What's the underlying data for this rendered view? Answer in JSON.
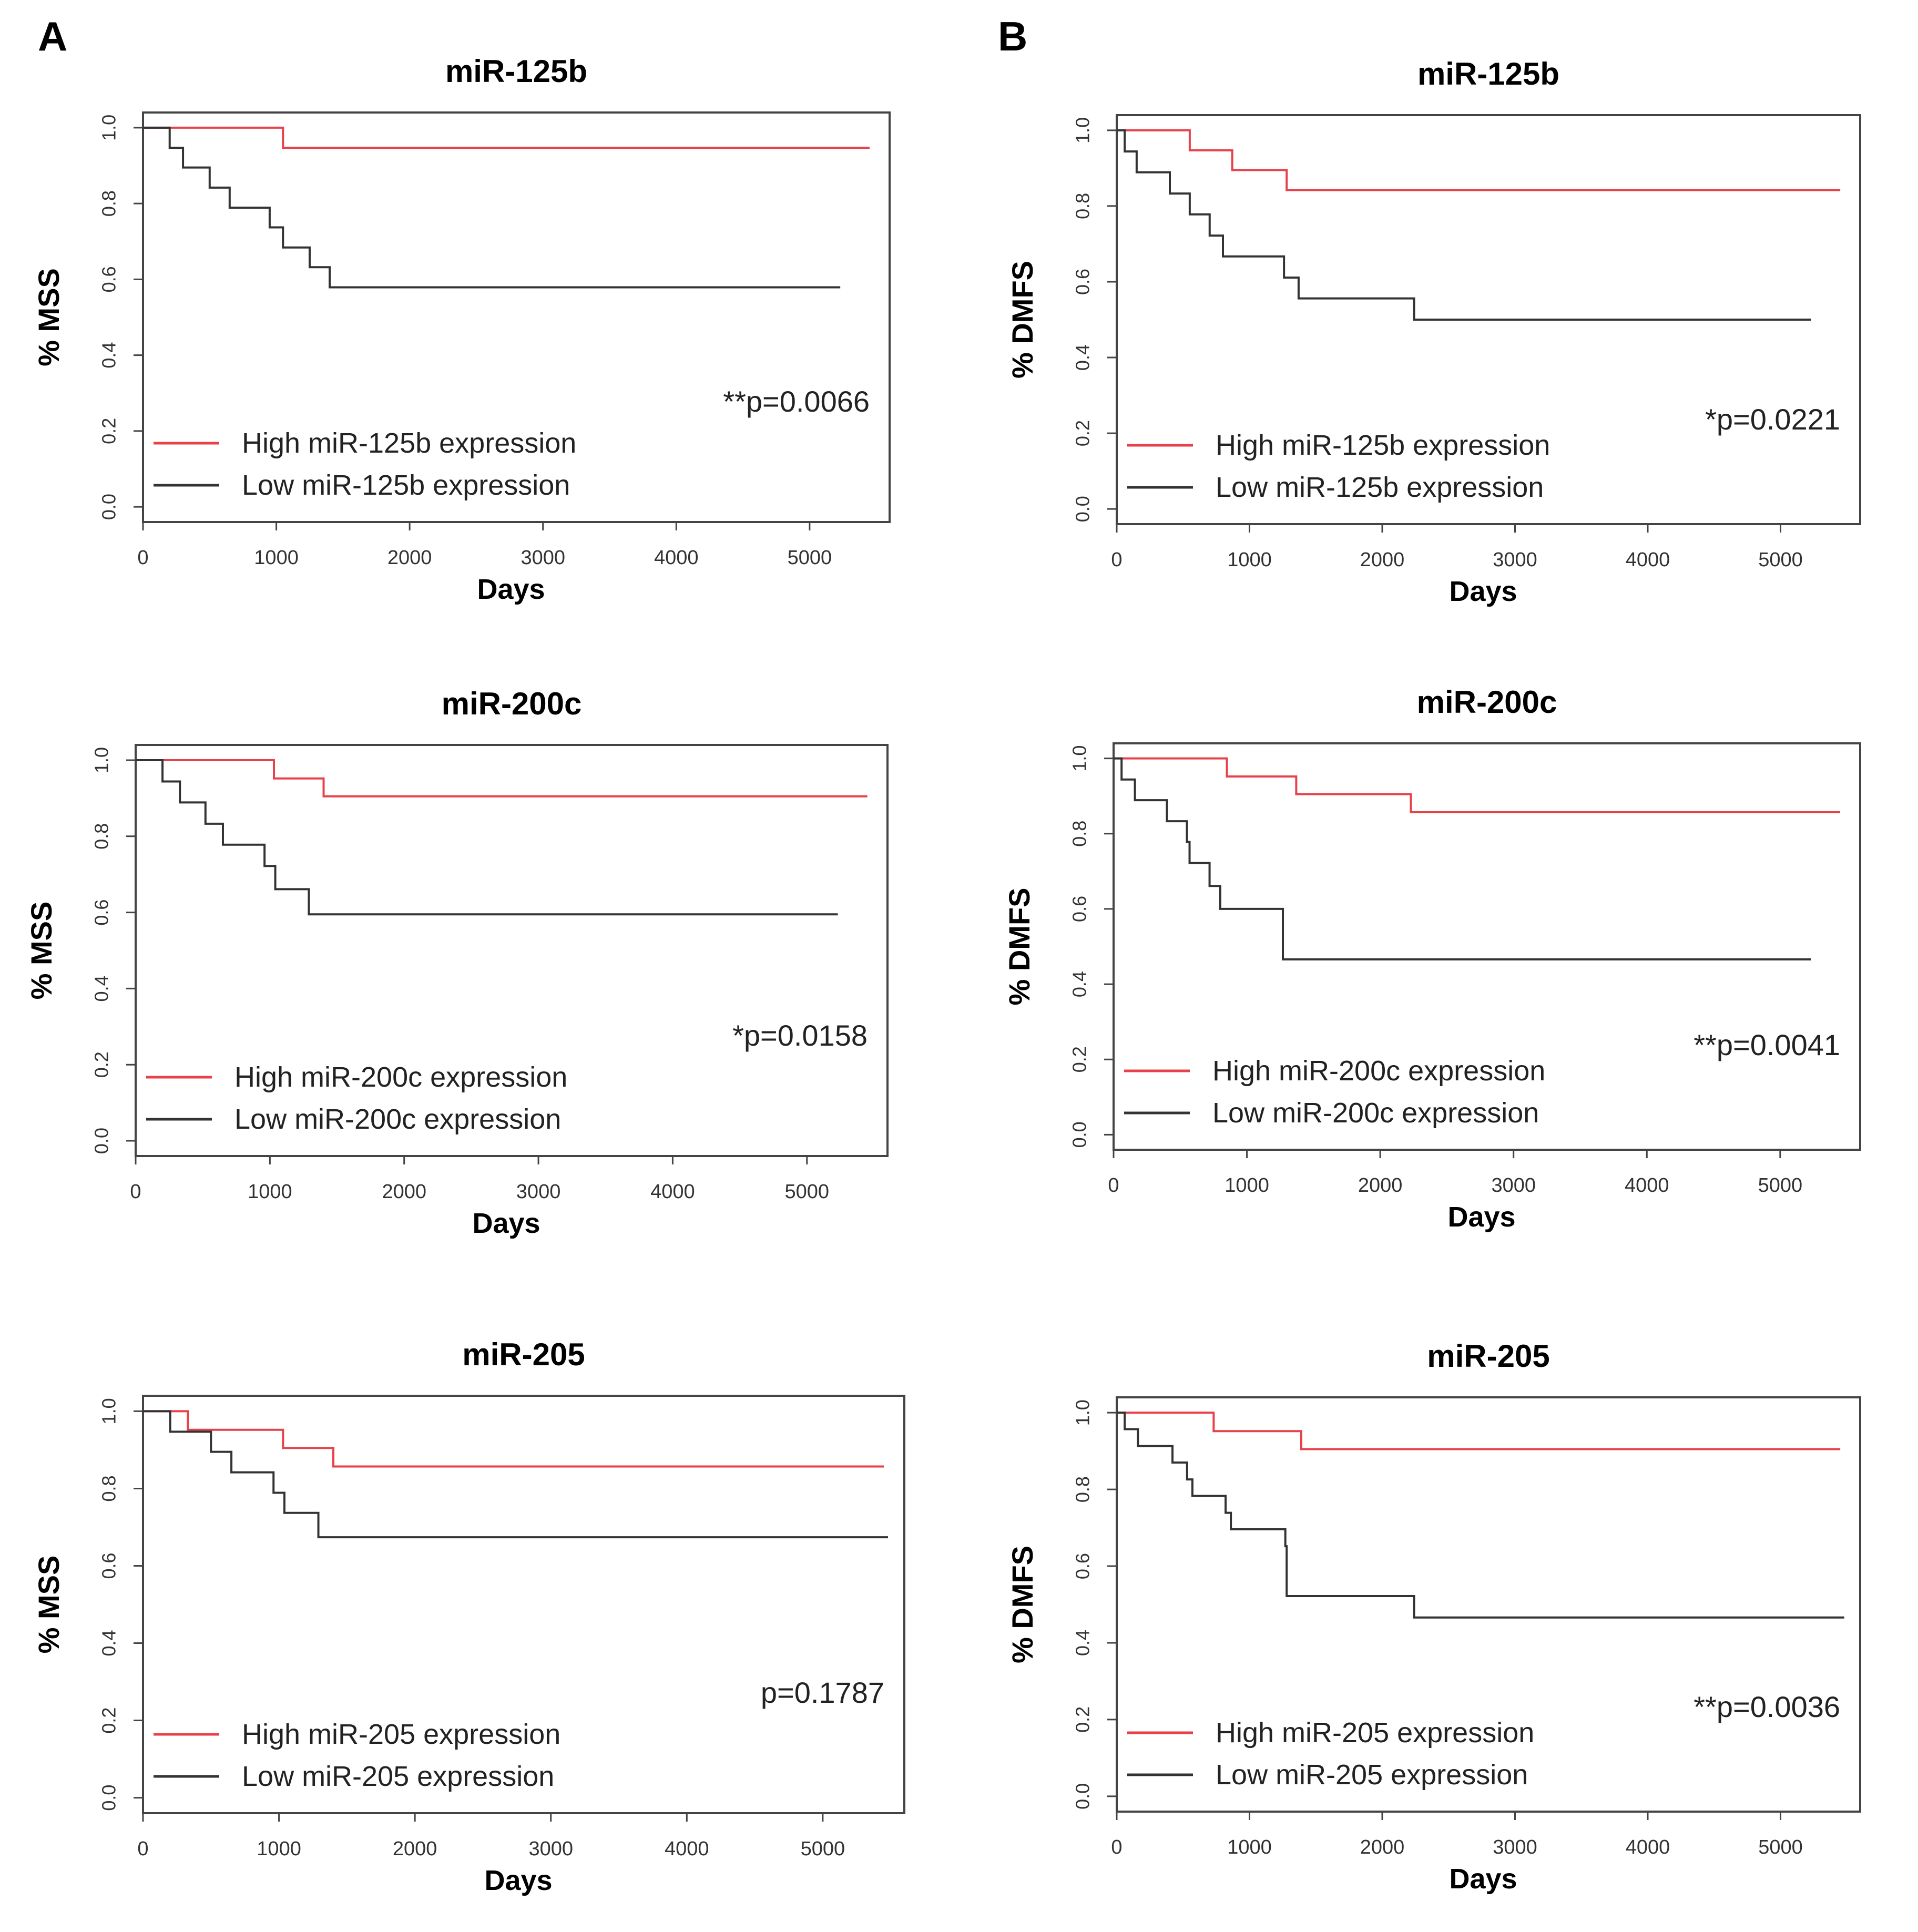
{
  "figure": {
    "panel_labels": [
      "A",
      "B"
    ]
  },
  "colors": {
    "high": "#e8414a",
    "low": "#333333",
    "frame": "#444444",
    "text": "#000000",
    "tick_text": "#333333"
  },
  "chart_data": [
    {
      "type": "line",
      "step": true,
      "panel": "A",
      "row": 0,
      "title": "miR-125b",
      "xlabel": "Days",
      "ylabel": "% MSS",
      "xlim": [
        0,
        5600
      ],
      "ylim": [
        -0.04,
        1.04
      ],
      "xticks": [
        0,
        1000,
        2000,
        3000,
        4000,
        5000
      ],
      "yticks": [
        0.0,
        0.2,
        0.4,
        0.6,
        0.8,
        1.0
      ],
      "ytick_labels": [
        "0.0",
        "0.2",
        "0.4",
        "0.6",
        "0.8",
        "1.0"
      ],
      "pvalue": "**p=0.0066",
      "legend": [
        "High miR-125b expression",
        "Low miR-125b expression"
      ],
      "series": [
        {
          "name": "High miR-125b expression",
          "color_key": "high",
          "x": [
            0,
            1050,
            5450
          ],
          "y": [
            1.0,
            0.947,
            0.947
          ]
        },
        {
          "name": "Low miR-125b expression",
          "color_key": "low",
          "x": [
            0,
            200,
            300,
            500,
            650,
            950,
            1050,
            1250,
            1400,
            5230
          ],
          "y": [
            1.0,
            0.947,
            0.895,
            0.842,
            0.789,
            0.737,
            0.684,
            0.632,
            0.579,
            0.579
          ]
        }
      ]
    },
    {
      "type": "line",
      "step": true,
      "panel": "B",
      "row": 0,
      "title": "miR-125b",
      "xlabel": "Days",
      "ylabel": "% DMFS",
      "xlim": [
        0,
        5600
      ],
      "ylim": [
        -0.04,
        1.04
      ],
      "xticks": [
        0,
        1000,
        2000,
        3000,
        4000,
        5000
      ],
      "yticks": [
        0.0,
        0.2,
        0.4,
        0.6,
        0.8,
        1.0
      ],
      "ytick_labels": [
        "0.0",
        "0.2",
        "0.4",
        "0.6",
        "0.8",
        "1.0"
      ],
      "pvalue": "*p=0.0221",
      "legend": [
        "High miR-125b expression",
        "Low miR-125b expression"
      ],
      "series": [
        {
          "name": "High miR-125b expression",
          "color_key": "high",
          "x": [
            0,
            550,
            870,
            1280,
            5450
          ],
          "y": [
            1.0,
            0.947,
            0.895,
            0.842,
            0.842
          ]
        },
        {
          "name": "Low miR-125b expression",
          "color_key": "low",
          "x": [
            0,
            60,
            150,
            400,
            550,
            700,
            800,
            1260,
            1370,
            2240,
            5230
          ],
          "y": [
            1.0,
            0.944,
            0.889,
            0.833,
            0.778,
            0.722,
            0.667,
            0.611,
            0.556,
            0.5,
            0.5
          ]
        }
      ]
    },
    {
      "type": "line",
      "step": true,
      "panel": "A",
      "row": 1,
      "title": "miR-200c",
      "xlabel": "Days",
      "ylabel": "% MSS",
      "xlim": [
        0,
        5600
      ],
      "ylim": [
        -0.04,
        1.04
      ],
      "xticks": [
        0,
        1000,
        2000,
        3000,
        4000,
        5000
      ],
      "yticks": [
        0.0,
        0.2,
        0.4,
        0.6,
        0.8,
        1.0
      ],
      "ytick_labels": [
        "0.0",
        "0.2",
        "0.4",
        "0.6",
        "0.8",
        "1.0"
      ],
      "pvalue": "*p=0.0158",
      "legend": [
        "High miR-200c expression",
        "Low miR-200c expression"
      ],
      "series": [
        {
          "name": "High miR-200c expression",
          "color_key": "high",
          "x": [
            0,
            1030,
            1400,
            5450
          ],
          "y": [
            1.0,
            0.952,
            0.905,
            0.905
          ]
        },
        {
          "name": "Low miR-200c expression",
          "color_key": "low",
          "x": [
            0,
            200,
            330,
            520,
            650,
            960,
            1040,
            1290,
            5230
          ],
          "y": [
            1.0,
            0.944,
            0.889,
            0.833,
            0.778,
            0.722,
            0.661,
            0.595,
            0.595
          ]
        }
      ]
    },
    {
      "type": "line",
      "step": true,
      "panel": "B",
      "row": 1,
      "title": "miR-200c",
      "xlabel": "Days",
      "ylabel": "% DMFS",
      "xlim": [
        0,
        5600
      ],
      "ylim": [
        -0.04,
        1.04
      ],
      "xticks": [
        0,
        1000,
        2000,
        3000,
        4000,
        5000
      ],
      "yticks": [
        0.0,
        0.2,
        0.4,
        0.6,
        0.8,
        1.0
      ],
      "ytick_labels": [
        "0.0",
        "0.2",
        "0.4",
        "0.6",
        "0.8",
        "1.0"
      ],
      "pvalue": "**p=0.0041",
      "legend": [
        "High miR-200c expression",
        "Low miR-200c expression"
      ],
      "series": [
        {
          "name": "High miR-200c expression",
          "color_key": "high",
          "x": [
            0,
            850,
            1370,
            2230,
            5450
          ],
          "y": [
            1.0,
            0.952,
            0.905,
            0.857,
            0.857
          ]
        },
        {
          "name": "Low miR-200c expression",
          "color_key": "low",
          "x": [
            0,
            60,
            160,
            400,
            550,
            570,
            720,
            800,
            1270,
            5230
          ],
          "y": [
            1.0,
            0.944,
            0.889,
            0.833,
            0.778,
            0.722,
            0.661,
            0.6,
            0.466,
            0.466
          ]
        }
      ]
    },
    {
      "type": "line",
      "step": true,
      "panel": "A",
      "row": 2,
      "title": "miR-205",
      "xlabel": "Days",
      "ylabel": "% MSS",
      "xlim": [
        0,
        5600
      ],
      "ylim": [
        -0.04,
        1.04
      ],
      "xticks": [
        0,
        1000,
        2000,
        3000,
        4000,
        5000
      ],
      "yticks": [
        0.0,
        0.2,
        0.4,
        0.6,
        0.8,
        1.0
      ],
      "ytick_labels": [
        "0.0",
        "0.2",
        "0.4",
        "0.6",
        "0.8",
        "1.0"
      ],
      "pvalue": "p=0.1787",
      "legend": [
        "High miR-205 expression",
        "Low miR-205 expression"
      ],
      "series": [
        {
          "name": "High miR-205 expression",
          "color_key": "high",
          "x": [
            0,
            330,
            1030,
            1400,
            5450
          ],
          "y": [
            1.0,
            0.952,
            0.905,
            0.857,
            0.857
          ]
        },
        {
          "name": "Low miR-205 expression",
          "color_key": "low",
          "x": [
            0,
            200,
            500,
            650,
            960,
            1040,
            1290,
            5480
          ],
          "y": [
            1.0,
            0.947,
            0.895,
            0.842,
            0.789,
            0.737,
            0.674,
            0.674
          ]
        }
      ]
    },
    {
      "type": "line",
      "step": true,
      "panel": "B",
      "row": 2,
      "title": "miR-205",
      "xlabel": "Days",
      "ylabel": "% DMFS",
      "xlim": [
        0,
        5600
      ],
      "ylim": [
        -0.04,
        1.04
      ],
      "xticks": [
        0,
        1000,
        2000,
        3000,
        4000,
        5000
      ],
      "yticks": [
        0.0,
        0.2,
        0.4,
        0.6,
        0.8,
        1.0
      ],
      "ytick_labels": [
        "0.0",
        "0.2",
        "0.4",
        "0.6",
        "0.8",
        "1.0"
      ],
      "pvalue": "**p=0.0036",
      "legend": [
        "High miR-205 expression",
        "Low miR-205 expression"
      ],
      "series": [
        {
          "name": "High miR-205 expression",
          "color_key": "high",
          "x": [
            0,
            730,
            1390,
            5450
          ],
          "y": [
            1.0,
            0.952,
            0.905,
            0.905
          ]
        },
        {
          "name": "Low miR-205 expression",
          "color_key": "low",
          "x": [
            0,
            60,
            160,
            420,
            530,
            570,
            820,
            860,
            1270,
            1280,
            2240,
            5480
          ],
          "y": [
            1.0,
            0.957,
            0.913,
            0.87,
            0.826,
            0.783,
            0.739,
            0.696,
            0.652,
            0.522,
            0.466,
            0.466
          ]
        }
      ]
    }
  ]
}
